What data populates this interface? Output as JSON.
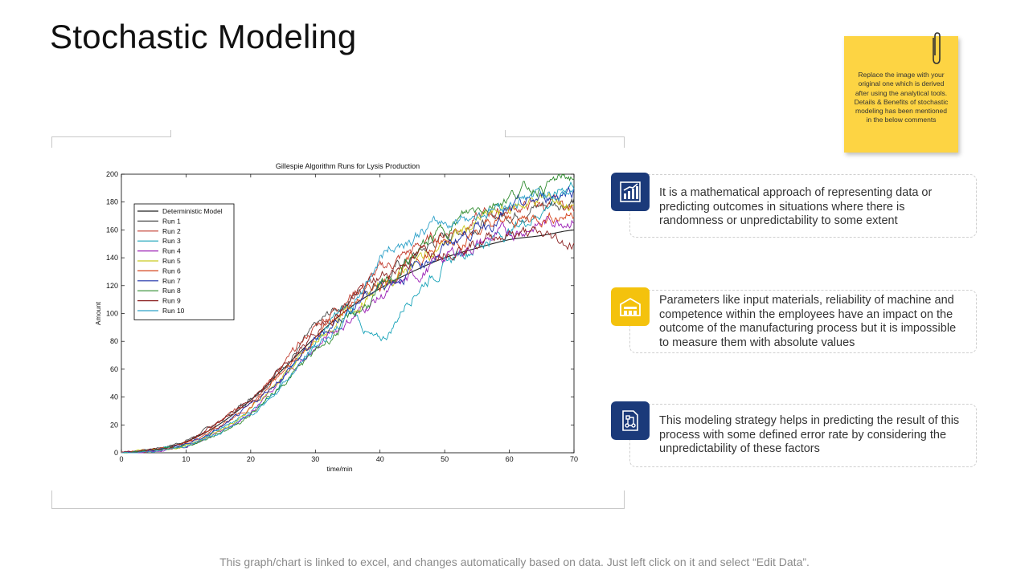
{
  "page": {
    "title": "Stochastic Modeling",
    "sticky_note": "Replace the image with your original one which is derived after using the analytical tools. Details & Benefits of stochastic modeling has been mentioned in the below comments",
    "footer": "This graph/chart is linked to excel, and changes automatically based on data. Just left click on it and select “Edit Data”."
  },
  "cards": [
    {
      "icon": "bar-chart-growth-icon",
      "text": "It is a mathematical approach of representing data or predicting outcomes in situations where there is randomness or unpredictability to some extent",
      "color": "#1b3a7a"
    },
    {
      "icon": "factory-icon",
      "text": "Parameters like input materials, reliability of machine and competence within the employees have an impact on the outcome of the manufacturing process but it is impossible to measure them with absolute values",
      "color": "#f4c20d"
    },
    {
      "icon": "document-flow-icon",
      "text": "This modeling strategy helps in predicting the result of this process with some defined error rate by considering the unpredictability of these factors",
      "color": "#1b3a7a"
    }
  ],
  "chart_data": {
    "type": "line",
    "title": "Gillespie Algorithm Runs for Lysis Production",
    "xlabel": "time/min",
    "ylabel": "Amount",
    "xlim": [
      0,
      70
    ],
    "ylim": [
      0,
      200
    ],
    "xticks": [
      0,
      10,
      20,
      30,
      40,
      50,
      60,
      70
    ],
    "yticks": [
      0,
      20,
      40,
      60,
      80,
      100,
      120,
      140,
      160,
      180,
      200
    ],
    "legend_position": "top-left",
    "x": [
      0,
      5,
      10,
      15,
      20,
      25,
      30,
      35,
      40,
      45,
      50,
      55,
      60,
      65,
      70
    ],
    "series": [
      {
        "name": "Deterministic Model",
        "color": "#222222",
        "values": [
          0,
          2,
          8,
          20,
          38,
          60,
          83,
          103,
          118,
          130,
          140,
          147,
          153,
          156,
          160
        ],
        "smooth": true
      },
      {
        "name": "Run 1",
        "color": "#4a4a4a",
        "values": [
          0,
          3,
          9,
          22,
          40,
          63,
          88,
          110,
          125,
          140,
          155,
          165,
          172,
          178,
          182
        ]
      },
      {
        "name": "Run 2",
        "color": "#c0392b",
        "values": [
          0,
          2,
          7,
          21,
          39,
          62,
          90,
          112,
          130,
          145,
          158,
          168,
          175,
          178,
          175
        ]
      },
      {
        "name": "Run 3",
        "color": "#17a2b8",
        "values": [
          0,
          2,
          6,
          16,
          30,
          52,
          80,
          102,
          80,
          115,
          135,
          150,
          160,
          175,
          195
        ]
      },
      {
        "name": "Run 4",
        "color": "#9b1fb5",
        "values": [
          0,
          1,
          5,
          15,
          30,
          52,
          75,
          95,
          112,
          125,
          140,
          150,
          158,
          165,
          170
        ]
      },
      {
        "name": "Run 5",
        "color": "#c9c920",
        "values": [
          0,
          2,
          6,
          16,
          32,
          55,
          78,
          100,
          118,
          135,
          150,
          165,
          175,
          182,
          178
        ]
      },
      {
        "name": "Run 6",
        "color": "#d4441c",
        "values": [
          0,
          2,
          7,
          18,
          34,
          57,
          82,
          104,
          122,
          138,
          150,
          160,
          165,
          170,
          172
        ]
      },
      {
        "name": "Run 7",
        "color": "#1c2fa8",
        "values": [
          0,
          2,
          6,
          17,
          33,
          56,
          80,
          102,
          120,
          132,
          148,
          162,
          172,
          182,
          190
        ]
      },
      {
        "name": "Run 8",
        "color": "#2e8b2e",
        "values": [
          0,
          2,
          5,
          14,
          28,
          50,
          72,
          95,
          115,
          140,
          160,
          175,
          185,
          192,
          198
        ]
      },
      {
        "name": "Run 9",
        "color": "#8b2020",
        "values": [
          0,
          2,
          8,
          22,
          38,
          60,
          85,
          108,
          125,
          140,
          148,
          152,
          158,
          155,
          150
        ]
      },
      {
        "name": "Run 10",
        "color": "#2ca0c8",
        "values": [
          0,
          1,
          5,
          14,
          28,
          50,
          75,
          98,
          140,
          155,
          165,
          172,
          180,
          185,
          188
        ]
      }
    ]
  }
}
